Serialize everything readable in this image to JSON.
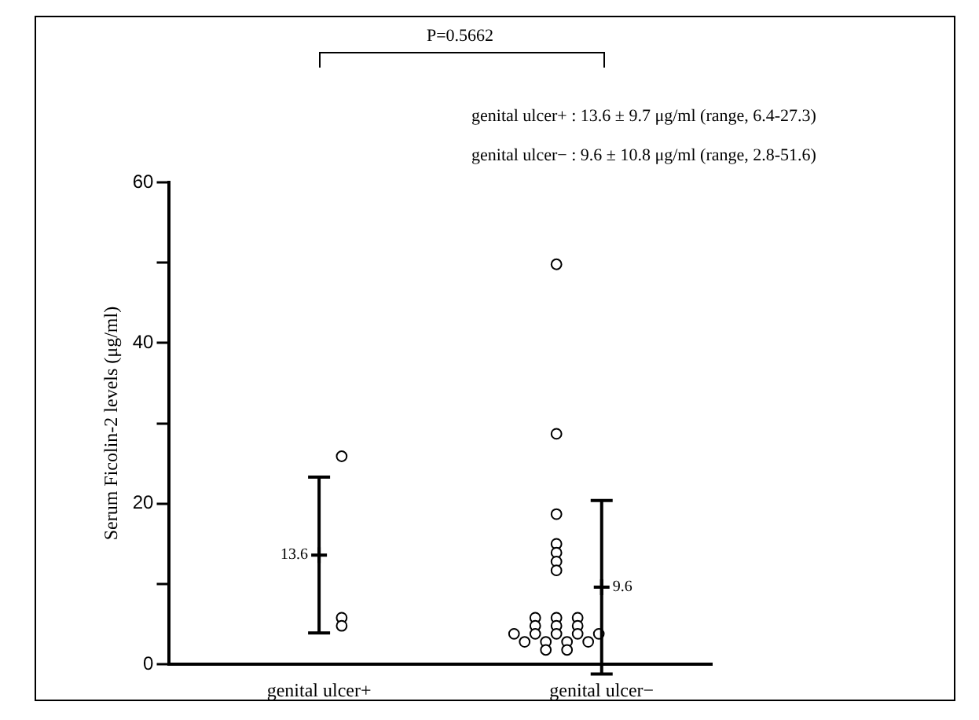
{
  "chart_data": {
    "type": "scatter",
    "ylabel": "Serum Ficolin-2 levels (μg/ml)",
    "categories": [
      "genital ulcer+",
      "genital ulcer−"
    ],
    "ylim": [
      0,
      60
    ],
    "yticks": [
      0,
      {
        "value": 10,
        "label": null
      },
      20,
      {
        "value": 30,
        "label": null
      },
      40,
      {
        "value": 50,
        "label": null
      },
      60
    ],
    "grid": false,
    "legend": false,
    "series": [
      {
        "color": "#000000",
        "marker": "circle",
        "x": [
          "genital ulcer+",
          "genital ulcer+",
          "genital ulcer+"
        ],
        "values": [
          25.9,
          5.8,
          4.8
        ]
      },
      {
        "color": "#000000",
        "marker": "circle",
        "x": [
          "genital ulcer−",
          "genital ulcer−",
          "genital ulcer−",
          "genital ulcer−",
          "genital ulcer−",
          "genital ulcer−",
          "genital ulcer−",
          "genital ulcer−",
          "genital ulcer−",
          "genital ulcer−",
          "genital ulcer−",
          "genital ulcer−",
          "genital ulcer−",
          "genital ulcer−",
          "genital ulcer−",
          "genital ulcer−",
          "genital ulcer−",
          "genital ulcer−",
          "genital ulcer−",
          "genital ulcer−",
          "genital ulcer−",
          "genital ulcer−",
          "genital ulcer−",
          "genital ulcer−"
        ],
        "values": [
          49.8,
          28.7,
          18.7,
          15.0,
          13.9,
          12.8,
          11.7,
          5.8,
          5.8,
          5.8,
          4.8,
          4.8,
          4.8,
          3.8,
          3.8,
          3.8,
          3.8,
          3.8,
          2.8,
          2.8,
          2.8,
          2.8,
          1.8,
          1.8
        ]
      },
      {
        "color": "#000000",
        "marker": "cross",
        "x": [
          "genital ulcer+",
          "genital ulcer−"
        ],
        "values": [
          13.6,
          9.6
        ],
        "errors": [
          9.7,
          10.8
        ],
        "value_labels": [
          "13.6",
          "9.6"
        ]
      }
    ],
    "annotations": [
      "P=0.5662",
      "genital ulcer+ : 13.6 ± 9.7 μg/ml (range, 6.4-27.3)",
      "genital ulcer− : 9.6 ± 10.8 μg/ml (range, 2.8-51.6)"
    ]
  }
}
